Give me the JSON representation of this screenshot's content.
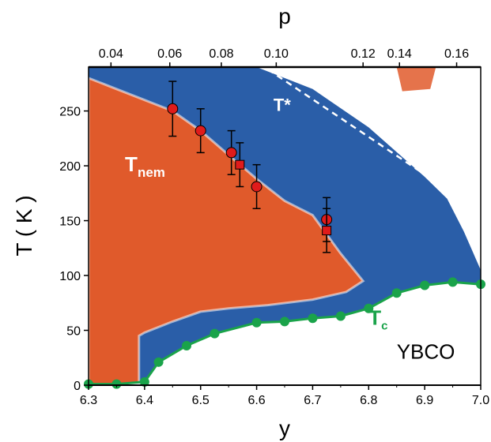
{
  "chart_data": {
    "type": "scatter",
    "title": "",
    "xlabel": "y",
    "ylabel": "T ( K )",
    "x2label": "p",
    "xlim": [
      6.3,
      7.0
    ],
    "ylim": [
      0,
      290
    ],
    "x_ticks": [
      "6.3",
      "6.4",
      "6.5",
      "6.6",
      "6.7",
      "6.8",
      "6.9",
      "7.0"
    ],
    "y_ticks": [
      "0",
      "50",
      "100",
      "150",
      "200",
      "250"
    ],
    "x2_ticks": [
      {
        "label": "0.04",
        "y": 6.34
      },
      {
        "label": "0.06",
        "y": 6.445
      },
      {
        "label": "0.08",
        "y": 6.537
      },
      {
        "label": "0.10",
        "y": 6.635
      },
      {
        "label": "0.12",
        "y": 6.79
      },
      {
        "label": "0.14",
        "y": 6.855
      },
      {
        "label": "0.16",
        "y": 6.957
      }
    ],
    "colors": {
      "nematic": "#e05a2b",
      "pseudogap": "#2a5ea8",
      "tc_line": "#1aa34a",
      "marker": "#e01b1b",
      "dashed": "#ffffff"
    },
    "series": [
      {
        "name": "",
        "marker": "circle",
        "points": [
          {
            "x": 6.45,
            "y": 252,
            "err": 25
          },
          {
            "x": 6.5,
            "y": 232,
            "err": 20
          },
          {
            "x": 6.555,
            "y": 212,
            "err": 20
          },
          {
            "x": 6.6,
            "y": 181,
            "err": 20
          },
          {
            "x": 6.725,
            "y": 151,
            "err": 20
          }
        ]
      },
      {
        "name": "",
        "marker": "square",
        "points": [
          {
            "x": 6.57,
            "y": 201,
            "err": 20
          },
          {
            "x": 6.725,
            "y": 141,
            "err": 20
          }
        ]
      },
      {
        "name": "Tc",
        "marker": "circle",
        "points": [
          {
            "x": 6.3,
            "y": 1
          },
          {
            "x": 6.35,
            "y": 1
          },
          {
            "x": 6.4,
            "y": 3
          },
          {
            "x": 6.425,
            "y": 21
          },
          {
            "x": 6.475,
            "y": 36
          },
          {
            "x": 6.525,
            "y": 47
          },
          {
            "x": 6.6,
            "y": 57
          },
          {
            "x": 6.65,
            "y": 58
          },
          {
            "x": 6.7,
            "y": 61
          },
          {
            "x": 6.75,
            "y": 63
          },
          {
            "x": 6.8,
            "y": 70
          },
          {
            "x": 6.85,
            "y": 84
          },
          {
            "x": 6.9,
            "y": 91
          },
          {
            "x": 6.95,
            "y": 94
          },
          {
            "x": 7.0,
            "y": 92
          }
        ]
      }
    ],
    "tnem_boundary": [
      [
        6.3,
        280
      ],
      [
        6.35,
        270
      ],
      [
        6.4,
        260
      ],
      [
        6.45,
        250
      ],
      [
        6.5,
        232
      ],
      [
        6.55,
        210
      ],
      [
        6.6,
        188
      ],
      [
        6.65,
        168
      ],
      [
        6.7,
        155
      ],
      [
        6.75,
        120
      ],
      [
        6.79,
        95
      ],
      [
        6.76,
        85
      ],
      [
        6.7,
        78
      ],
      [
        6.62,
        73
      ],
      [
        6.55,
        70
      ],
      [
        6.5,
        67
      ],
      [
        6.45,
        58
      ],
      [
        6.4,
        48
      ],
      [
        6.39,
        45
      ],
      [
        6.39,
        0
      ],
      [
        6.3,
        0
      ]
    ],
    "tstar_boundary": [
      [
        6.3,
        290
      ],
      [
        6.6,
        290
      ],
      [
        6.7,
        270
      ],
      [
        6.8,
        235
      ],
      [
        6.9,
        190
      ],
      [
        6.94,
        170
      ],
      [
        6.97,
        140
      ],
      [
        7.0,
        105
      ]
    ],
    "tstar_line": [
      [
        6.62,
        288
      ],
      [
        6.95,
        175
      ]
    ],
    "annotations": {
      "tstar": {
        "text": "T*",
        "x": 6.63,
        "y": 250
      },
      "tnem": {
        "main": "T",
        "sub": "nem",
        "x": 6.365,
        "y": 195
      },
      "tc": {
        "main": "T",
        "sub": "c",
        "x": 6.8,
        "y": 55
      },
      "material": {
        "text": "YBCO",
        "x": 6.85,
        "y": 24
      }
    }
  }
}
